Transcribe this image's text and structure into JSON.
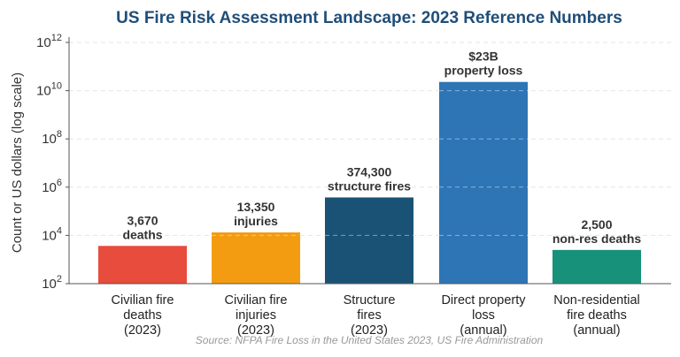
{
  "chart_data": {
    "type": "bar",
    "title": "US Fire Risk Assessment Landscape: 2023 Reference Numbers",
    "ylabel": "Count or US dollars (log scale)",
    "xlabel": "",
    "yscale": "log",
    "ylim": [
      100,
      1000000000000
    ],
    "yticks": [
      {
        "value": 100,
        "base": "10",
        "exp": "2"
      },
      {
        "value": 10000,
        "base": "10",
        "exp": "4"
      },
      {
        "value": 1000000,
        "base": "10",
        "exp": "6"
      },
      {
        "value": 100000000,
        "base": "10",
        "exp": "8"
      },
      {
        "value": 10000000000,
        "base": "10",
        "exp": "10"
      },
      {
        "value": 1000000000000,
        "base": "10",
        "exp": "12"
      }
    ],
    "grid": true,
    "source": "Source: NFPA Fire Loss in the United States 2023, US Fire Administration",
    "bars": [
      {
        "category": [
          "Civilian fire",
          "deaths",
          "(2023)"
        ],
        "value": 3670,
        "label": [
          "3,670",
          "deaths"
        ],
        "color": "#e74c3c"
      },
      {
        "category": [
          "Civilian fire",
          "injuries",
          "(2023)"
        ],
        "value": 13350,
        "label": [
          "13,350",
          "injuries"
        ],
        "color": "#f39c12"
      },
      {
        "category": [
          "Structure",
          "fires",
          "(2023)"
        ],
        "value": 374300,
        "label": [
          "374,300",
          "structure fires"
        ],
        "color": "#1a5276"
      },
      {
        "category": [
          "Direct property",
          "loss",
          "(annual)"
        ],
        "value": 23000000000,
        "label": [
          "$23B",
          "property loss"
        ],
        "color": "#2e75b6"
      },
      {
        "category": [
          "Non-residential",
          "fire deaths",
          "(annual)"
        ],
        "value": 2500,
        "label": [
          "2,500",
          "non-res deaths"
        ],
        "color": "#17917a"
      }
    ],
    "colors": {
      "title": "#1f4e79",
      "axis": "#555555",
      "grid": "#e6e6e6"
    }
  }
}
